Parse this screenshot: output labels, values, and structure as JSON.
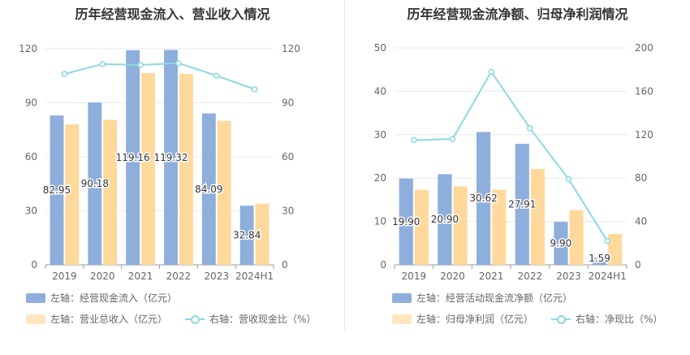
{
  "chart_data": [
    {
      "type": "bar",
      "title": "历年经营现金流入、营业收入情况",
      "categories": [
        "2019",
        "2020",
        "2021",
        "2022",
        "2023",
        "2024H1"
      ],
      "series": [
        {
          "name": "左轴：经营现金流入（亿元）",
          "axis": "left",
          "color": "#8eaedc",
          "values": [
            82.95,
            90.18,
            119.16,
            119.32,
            84.09,
            32.84
          ],
          "labels": [
            "82.95",
            "90.18",
            "119.16",
            "119.32",
            "84.09",
            "32.84"
          ]
        },
        {
          "name": "左轴：营业总收入（亿元）",
          "axis": "left",
          "color": "#ffd99b",
          "values": [
            78,
            80.5,
            106.5,
            106,
            80,
            34
          ]
        },
        {
          "name": "右轴：营收现金比（%）",
          "axis": "right",
          "type": "line",
          "color": "#8cd9de",
          "values": [
            106,
            111.5,
            111,
            112,
            105,
            97.5
          ]
        }
      ],
      "left_axis": {
        "min": 0,
        "max": 120,
        "ticks": [
          "0",
          "30",
          "60",
          "90",
          "120"
        ]
      },
      "right_axis": {
        "min": 0,
        "max": 120,
        "ticks": [
          "0",
          "30",
          "60",
          "90",
          "120"
        ]
      },
      "grid": true,
      "legend_position": "bottom-left"
    },
    {
      "type": "bar",
      "title": "历年经营现金流净额、归母净利润情况",
      "categories": [
        "2019",
        "2020",
        "2021",
        "2022",
        "2023",
        "2024H1"
      ],
      "series": [
        {
          "name": "左轴：经营活动现金流净额（亿元）",
          "axis": "left",
          "color": "#8eaedc",
          "values": [
            19.9,
            20.9,
            30.62,
            27.91,
            9.9,
            1.59
          ],
          "labels": [
            "19.90",
            "20.90",
            "30.62",
            "27.91",
            "9.90",
            "1.59"
          ]
        },
        {
          "name": "左轴：归母净利润（亿元）",
          "axis": "left",
          "color": "#ffd99b",
          "values": [
            17.3,
            18.1,
            17.3,
            22.1,
            12.6,
            7.1
          ]
        },
        {
          "name": "右轴：净现比（%）",
          "axis": "right",
          "type": "line",
          "color": "#8cd9de",
          "values": [
            115,
            116,
            178,
            126,
            79,
            22
          ]
        }
      ],
      "left_axis": {
        "min": 0,
        "max": 50,
        "ticks": [
          "0",
          "10",
          "20",
          "30",
          "40",
          "50"
        ]
      },
      "right_axis": {
        "min": 0,
        "max": 200,
        "ticks": [
          "0",
          "40",
          "80",
          "120",
          "160",
          "200"
        ]
      },
      "grid": true,
      "legend_position": "bottom-left"
    }
  ]
}
